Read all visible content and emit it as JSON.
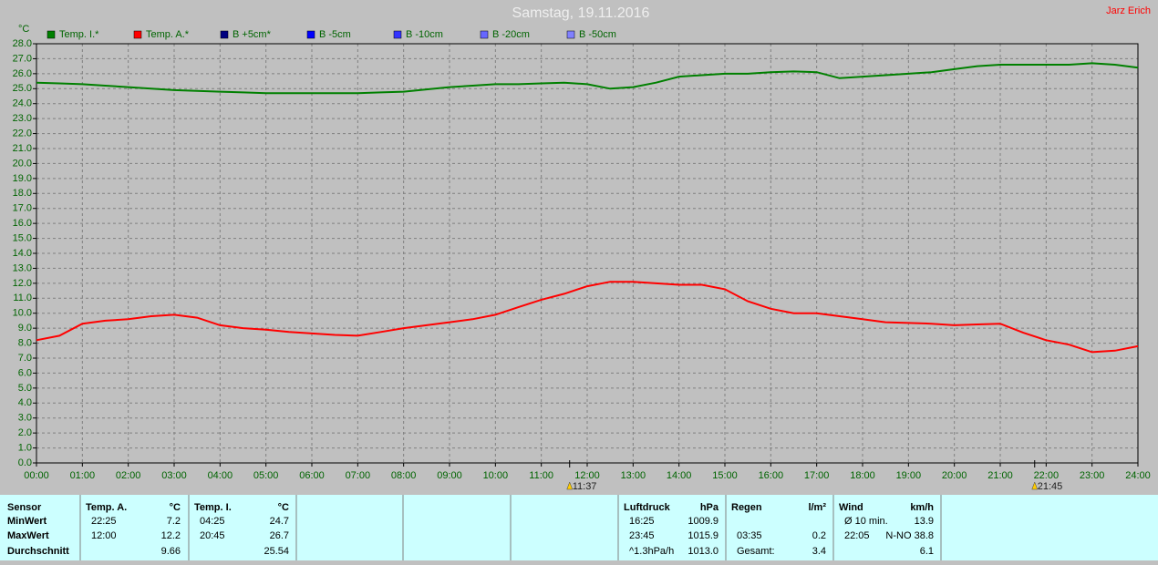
{
  "chart_data": {
    "type": "line",
    "title": "Samstag, 19.11.2016",
    "author": "Jarz Erich",
    "y_unit": "°C",
    "grid": true,
    "x": [
      0,
      0.5,
      1,
      1.5,
      2,
      2.5,
      3,
      3.5,
      4,
      4.5,
      5,
      5.5,
      6,
      6.5,
      7,
      7.5,
      8,
      8.5,
      9,
      9.5,
      10,
      10.5,
      11,
      11.5,
      12,
      12.5,
      13,
      13.5,
      14,
      14.5,
      15,
      15.5,
      16,
      16.5,
      17,
      17.5,
      18,
      18.5,
      19,
      19.5,
      20,
      20.5,
      21,
      21.5,
      22,
      22.5,
      23,
      23.5,
      24
    ],
    "xlim": [
      0,
      24
    ],
    "xticks": [
      {
        "value": 0,
        "label": "00:00"
      },
      {
        "value": 1,
        "label": "01:00"
      },
      {
        "value": 2,
        "label": "02:00"
      },
      {
        "value": 3,
        "label": "03:00"
      },
      {
        "value": 4,
        "label": "04:00"
      },
      {
        "value": 5,
        "label": "05:00"
      },
      {
        "value": 6,
        "label": "06:00"
      },
      {
        "value": 7,
        "label": "07:00"
      },
      {
        "value": 8,
        "label": "08:00"
      },
      {
        "value": 9,
        "label": "09:00"
      },
      {
        "value": 10,
        "label": "10:00"
      },
      {
        "value": 11,
        "label": "11:00"
      },
      {
        "value": 12,
        "label": "12:00"
      },
      {
        "value": 13,
        "label": "13:00"
      },
      {
        "value": 14,
        "label": "14:00"
      },
      {
        "value": 15,
        "label": "15:00"
      },
      {
        "value": 16,
        "label": "16:00"
      },
      {
        "value": 17,
        "label": "17:00"
      },
      {
        "value": 18,
        "label": "18:00"
      },
      {
        "value": 19,
        "label": "19:00"
      },
      {
        "value": 20,
        "label": "20:00"
      },
      {
        "value": 21,
        "label": "21:00"
      },
      {
        "value": 22,
        "label": "22:00"
      },
      {
        "value": 23,
        "label": "23:00"
      },
      {
        "value": 24,
        "label": "24:00"
      }
    ],
    "ylim": [
      0,
      28
    ],
    "yticks": [
      {
        "value": 0,
        "label": "0.0"
      },
      {
        "value": 1,
        "label": "1.0"
      },
      {
        "value": 2,
        "label": "2.0"
      },
      {
        "value": 3,
        "label": "3.0"
      },
      {
        "value": 4,
        "label": "4.0"
      },
      {
        "value": 5,
        "label": "5.0"
      },
      {
        "value": 6,
        "label": "6.0"
      },
      {
        "value": 7,
        "label": "7.0"
      },
      {
        "value": 8,
        "label": "8.0"
      },
      {
        "value": 9,
        "label": "9.0"
      },
      {
        "value": 10,
        "label": "10.0"
      },
      {
        "value": 11,
        "label": "11.0"
      },
      {
        "value": 12,
        "label": "12.0"
      },
      {
        "value": 13,
        "label": "13.0"
      },
      {
        "value": 14,
        "label": "14.0"
      },
      {
        "value": 15,
        "label": "15.0"
      },
      {
        "value": 16,
        "label": "16.0"
      },
      {
        "value": 17,
        "label": "17.0"
      },
      {
        "value": 18,
        "label": "18.0"
      },
      {
        "value": 19,
        "label": "19.0"
      },
      {
        "value": 20,
        "label": "20.0"
      },
      {
        "value": 21,
        "label": "21.0"
      },
      {
        "value": 22,
        "label": "22.0"
      },
      {
        "value": 23,
        "label": "23.0"
      },
      {
        "value": 24,
        "label": "24.0"
      },
      {
        "value": 25,
        "label": "25.0"
      },
      {
        "value": 26,
        "label": "26.0"
      },
      {
        "value": 27,
        "label": "27.0"
      },
      {
        "value": 28,
        "label": "28.0"
      }
    ],
    "series": [
      {
        "name": "Temp. I.*",
        "color": "#008000",
        "values": [
          25.4,
          25.35,
          25.3,
          25.2,
          25.1,
          25.0,
          24.9,
          24.85,
          24.8,
          24.75,
          24.7,
          24.7,
          24.7,
          24.7,
          24.7,
          24.75,
          24.8,
          24.95,
          25.1,
          25.2,
          25.3,
          25.3,
          25.35,
          25.4,
          25.3,
          25.0,
          25.1,
          25.4,
          25.8,
          25.9,
          26.0,
          26.0,
          26.1,
          26.15,
          26.1,
          25.7,
          25.8,
          25.9,
          26.0,
          26.1,
          26.3,
          26.5,
          26.6,
          26.6,
          26.6,
          26.6,
          26.7,
          26.6,
          26.4
        ]
      },
      {
        "name": "Temp. A.*",
        "color": "#ff0000",
        "values": [
          8.2,
          8.5,
          9.3,
          9.5,
          9.6,
          9.8,
          9.9,
          9.7,
          9.2,
          9.0,
          8.9,
          8.75,
          8.65,
          8.55,
          8.5,
          8.75,
          9.0,
          9.2,
          9.4,
          9.6,
          9.9,
          10.4,
          10.9,
          11.3,
          11.8,
          12.1,
          12.1,
          12.0,
          11.9,
          11.9,
          11.6,
          10.8,
          10.3,
          10.0,
          10.0,
          9.8,
          9.6,
          9.4,
          9.35,
          9.3,
          9.2,
          9.25,
          9.3,
          8.7,
          8.2,
          7.9,
          7.4,
          7.5,
          7.8
        ]
      }
    ],
    "legend_only": [
      {
        "name": "B +5cm*",
        "color": "#000080"
      },
      {
        "name": "B -5cm",
        "color": "#0000ff"
      },
      {
        "name": "B -10cm",
        "color": "#3333ff"
      },
      {
        "name": "B -20cm",
        "color": "#6666ff"
      },
      {
        "name": "B -50cm",
        "color": "#8080ff"
      }
    ],
    "annotations": [
      {
        "text": "11:37",
        "x": 11.617
      },
      {
        "text": "21:45",
        "x": 21.75
      }
    ]
  },
  "table": {
    "row_labels": [
      "Sensor",
      "MinWert",
      "MaxWert",
      "Durchschnitt"
    ],
    "groups": [
      {
        "header": "Temp. A.",
        "unit": "°C",
        "rows": [
          [
            "22:25",
            "7.2"
          ],
          [
            "12:00",
            "12.2"
          ],
          [
            null,
            "9.66"
          ]
        ]
      },
      {
        "header": "Temp. I.",
        "unit": "°C",
        "rows": [
          [
            "04:25",
            "24.7"
          ],
          [
            "20:45",
            "26.7"
          ],
          [
            null,
            "25.54"
          ]
        ]
      },
      {
        "header": "Luftdruck",
        "unit": "hPa",
        "rows": [
          [
            "16:25",
            "1009.9"
          ],
          [
            "23:45",
            "1015.9"
          ],
          [
            "^1.3hPa/h",
            "1013.0"
          ]
        ]
      },
      {
        "header": "Regen",
        "unit": "l/m²",
        "rows": [
          [
            null,
            null
          ],
          [
            "03:35",
            "0.2"
          ],
          [
            "Gesamt:",
            "3.4"
          ]
        ]
      },
      {
        "header": "Wind",
        "unit": "km/h",
        "rows": [
          [
            "Ø 10 min.",
            "13.9"
          ],
          [
            "22:05",
            "N-NO 38.8"
          ],
          [
            null,
            "6.1"
          ]
        ]
      }
    ]
  }
}
